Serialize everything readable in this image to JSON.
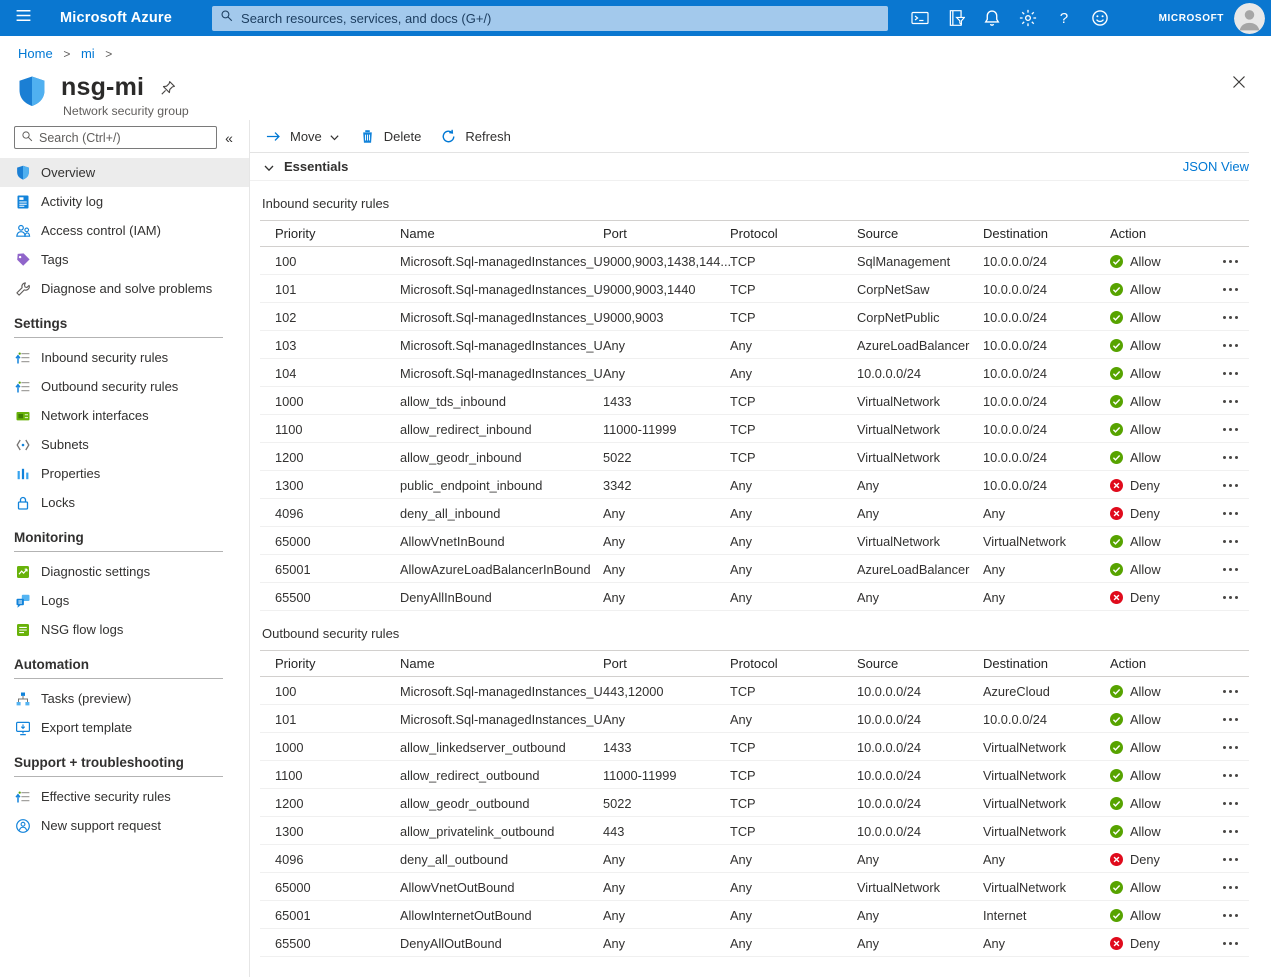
{
  "colors": {
    "topbar_blue": "#0a77d0",
    "topbar_search_bg": "#a3c9ec",
    "accent_blue": "#0078d4",
    "allow_green": "#57a300",
    "deny_red": "#e00b1c",
    "selected_item_bg": "#ececec"
  },
  "topbar": {
    "product": "Microsoft Azure",
    "search_placeholder": "Search resources, services, and docs (G+/)",
    "icons": [
      "cloud-shell",
      "directory-filter",
      "notifications",
      "settings",
      "help",
      "feedback"
    ],
    "account_label": "MICROSOFT"
  },
  "breadcrumb": {
    "items": [
      "Home",
      "mi"
    ],
    "separator": ">"
  },
  "header": {
    "title": "nsg-mi",
    "subtitle": "Network security group"
  },
  "sidebar": {
    "search_placeholder": "Search (Ctrl+/)",
    "collapse_label": "«",
    "sections": [
      {
        "heading": "",
        "items": [
          {
            "label": "Overview",
            "icon": "shield-small",
            "selected": true
          },
          {
            "label": "Activity log",
            "icon": "activity-log",
            "selected": false
          },
          {
            "label": "Access control (IAM)",
            "icon": "iam",
            "selected": false
          },
          {
            "label": "Tags",
            "icon": "tags",
            "selected": false
          },
          {
            "label": "Diagnose and solve problems",
            "icon": "diagnose",
            "selected": false
          }
        ]
      },
      {
        "heading": "Settings",
        "items": [
          {
            "label": "Inbound security rules",
            "icon": "rules",
            "selected": false
          },
          {
            "label": "Outbound security rules",
            "icon": "rules",
            "selected": false
          },
          {
            "label": "Network interfaces",
            "icon": "nic",
            "selected": false
          },
          {
            "label": "Subnets",
            "icon": "subnets",
            "selected": false
          },
          {
            "label": "Properties",
            "icon": "properties",
            "selected": false
          },
          {
            "label": "Locks",
            "icon": "locks",
            "selected": false
          }
        ]
      },
      {
        "heading": "Monitoring",
        "items": [
          {
            "label": "Diagnostic settings",
            "icon": "diag-settings",
            "selected": false
          },
          {
            "label": "Logs",
            "icon": "logs",
            "selected": false
          },
          {
            "label": "NSG flow logs",
            "icon": "flow-logs",
            "selected": false
          }
        ]
      },
      {
        "heading": "Automation",
        "items": [
          {
            "label": "Tasks (preview)",
            "icon": "tasks",
            "selected": false
          },
          {
            "label": "Export template",
            "icon": "export",
            "selected": false
          }
        ]
      },
      {
        "heading": "Support + troubleshooting",
        "items": [
          {
            "label": "Effective security rules",
            "icon": "rules",
            "selected": false
          },
          {
            "label": "New support request",
            "icon": "support",
            "selected": false
          }
        ]
      }
    ]
  },
  "toolbar": {
    "move_label": "Move",
    "delete_label": "Delete",
    "refresh_label": "Refresh"
  },
  "essentials": {
    "label": "Essentials",
    "json_view_label": "JSON View"
  },
  "tables": {
    "columns": [
      "Priority",
      "Name",
      "Port",
      "Protocol",
      "Source",
      "Destination",
      "Action"
    ],
    "inbound": {
      "title": "Inbound security rules",
      "rows": [
        {
          "priority": "100",
          "name": "Microsoft.Sql-managedInstances_U...",
          "port": "9000,9003,1438,144...",
          "protocol": "TCP",
          "source": "SqlManagement",
          "destination": "10.0.0.0/24",
          "action": "Allow"
        },
        {
          "priority": "101",
          "name": "Microsoft.Sql-managedInstances_U...",
          "port": "9000,9003,1440",
          "protocol": "TCP",
          "source": "CorpNetSaw",
          "destination": "10.0.0.0/24",
          "action": "Allow"
        },
        {
          "priority": "102",
          "name": "Microsoft.Sql-managedInstances_U...",
          "port": "9000,9003",
          "protocol": "TCP",
          "source": "CorpNetPublic",
          "destination": "10.0.0.0/24",
          "action": "Allow"
        },
        {
          "priority": "103",
          "name": "Microsoft.Sql-managedInstances_U...",
          "port": "Any",
          "protocol": "Any",
          "source": "AzureLoadBalancer",
          "destination": "10.0.0.0/24",
          "action": "Allow"
        },
        {
          "priority": "104",
          "name": "Microsoft.Sql-managedInstances_U...",
          "port": "Any",
          "protocol": "Any",
          "source": "10.0.0.0/24",
          "destination": "10.0.0.0/24",
          "action": "Allow"
        },
        {
          "priority": "1000",
          "name": "allow_tds_inbound",
          "port": "1433",
          "protocol": "TCP",
          "source": "VirtualNetwork",
          "destination": "10.0.0.0/24",
          "action": "Allow"
        },
        {
          "priority": "1100",
          "name": "allow_redirect_inbound",
          "port": "11000-11999",
          "protocol": "TCP",
          "source": "VirtualNetwork",
          "destination": "10.0.0.0/24",
          "action": "Allow"
        },
        {
          "priority": "1200",
          "name": "allow_geodr_inbound",
          "port": "5022",
          "protocol": "TCP",
          "source": "VirtualNetwork",
          "destination": "10.0.0.0/24",
          "action": "Allow"
        },
        {
          "priority": "1300",
          "name": "public_endpoint_inbound",
          "port": "3342",
          "protocol": "Any",
          "source": "Any",
          "destination": "10.0.0.0/24",
          "action": "Deny"
        },
        {
          "priority": "4096",
          "name": "deny_all_inbound",
          "port": "Any",
          "protocol": "Any",
          "source": "Any",
          "destination": "Any",
          "action": "Deny"
        },
        {
          "priority": "65000",
          "name": "AllowVnetInBound",
          "port": "Any",
          "protocol": "Any",
          "source": "VirtualNetwork",
          "destination": "VirtualNetwork",
          "action": "Allow"
        },
        {
          "priority": "65001",
          "name": "AllowAzureLoadBalancerInBound",
          "port": "Any",
          "protocol": "Any",
          "source": "AzureLoadBalancer",
          "destination": "Any",
          "action": "Allow"
        },
        {
          "priority": "65500",
          "name": "DenyAllInBound",
          "port": "Any",
          "protocol": "Any",
          "source": "Any",
          "destination": "Any",
          "action": "Deny"
        }
      ]
    },
    "outbound": {
      "title": "Outbound security rules",
      "rows": [
        {
          "priority": "100",
          "name": "Microsoft.Sql-managedInstances_U...",
          "port": "443,12000",
          "protocol": "TCP",
          "source": "10.0.0.0/24",
          "destination": "AzureCloud",
          "action": "Allow"
        },
        {
          "priority": "101",
          "name": "Microsoft.Sql-managedInstances_U...",
          "port": "Any",
          "protocol": "Any",
          "source": "10.0.0.0/24",
          "destination": "10.0.0.0/24",
          "action": "Allow"
        },
        {
          "priority": "1000",
          "name": "allow_linkedserver_outbound",
          "port": "1433",
          "protocol": "TCP",
          "source": "10.0.0.0/24",
          "destination": "VirtualNetwork",
          "action": "Allow"
        },
        {
          "priority": "1100",
          "name": "allow_redirect_outbound",
          "port": "11000-11999",
          "protocol": "TCP",
          "source": "10.0.0.0/24",
          "destination": "VirtualNetwork",
          "action": "Allow"
        },
        {
          "priority": "1200",
          "name": "allow_geodr_outbound",
          "port": "5022",
          "protocol": "TCP",
          "source": "10.0.0.0/24",
          "destination": "VirtualNetwork",
          "action": "Allow"
        },
        {
          "priority": "1300",
          "name": "allow_privatelink_outbound",
          "port": "443",
          "protocol": "TCP",
          "source": "10.0.0.0/24",
          "destination": "VirtualNetwork",
          "action": "Allow"
        },
        {
          "priority": "4096",
          "name": "deny_all_outbound",
          "port": "Any",
          "protocol": "Any",
          "source": "Any",
          "destination": "Any",
          "action": "Deny"
        },
        {
          "priority": "65000",
          "name": "AllowVnetOutBound",
          "port": "Any",
          "protocol": "Any",
          "source": "VirtualNetwork",
          "destination": "VirtualNetwork",
          "action": "Allow"
        },
        {
          "priority": "65001",
          "name": "AllowInternetOutBound",
          "port": "Any",
          "protocol": "Any",
          "source": "Any",
          "destination": "Internet",
          "action": "Allow"
        },
        {
          "priority": "65500",
          "name": "DenyAllOutBound",
          "port": "Any",
          "protocol": "Any",
          "source": "Any",
          "destination": "Any",
          "action": "Deny"
        }
      ]
    }
  }
}
